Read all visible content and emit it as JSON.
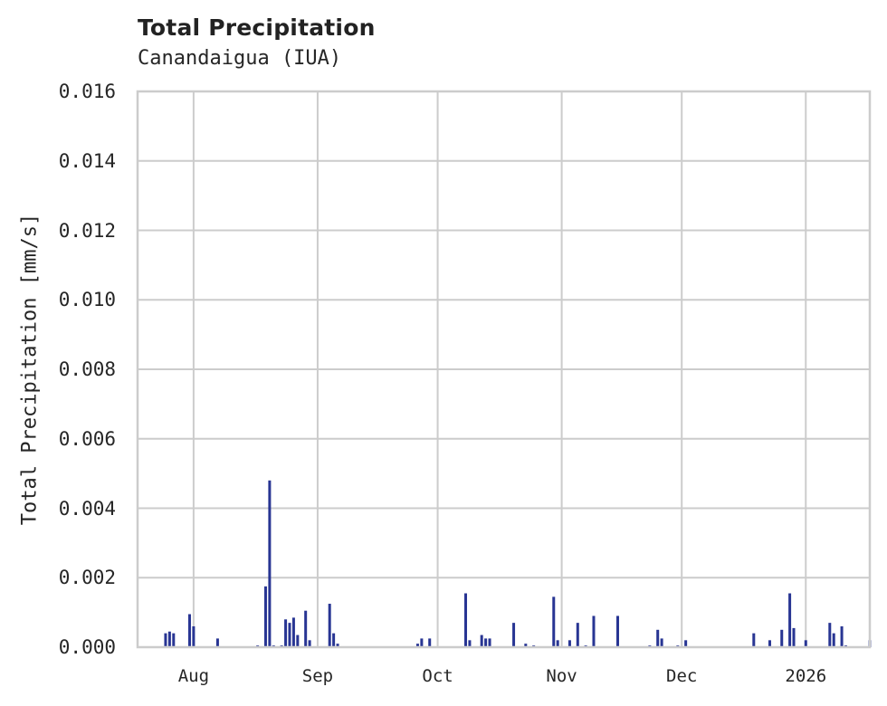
{
  "chart_data": {
    "type": "bar",
    "title": "Total Precipitation",
    "subtitle": "Canandaigua (IUA)",
    "xlabel": "",
    "ylabel": "Total Precipitation [mm/s]",
    "ylim": [
      0,
      0.016
    ],
    "yticks": [
      "0.000",
      "0.002",
      "0.004",
      "0.006",
      "0.008",
      "0.010",
      "0.012",
      "0.014",
      "0.016"
    ],
    "xticks": [
      "Aug",
      "Sep",
      "Oct",
      "Nov",
      "Dec",
      "2026"
    ],
    "xlim": [
      "2025-07-18",
      "2026-01-17"
    ],
    "grid": true,
    "legend": null,
    "series": [
      {
        "name": "Total Precipitation",
        "color": "#283593",
        "points": [
          {
            "x": "2025-07-25",
            "y": 0.0004
          },
          {
            "x": "2025-07-26",
            "y": 0.00045
          },
          {
            "x": "2025-07-27",
            "y": 0.0004
          },
          {
            "x": "2025-07-31",
            "y": 0.00095
          },
          {
            "x": "2025-08-01",
            "y": 0.0006
          },
          {
            "x": "2025-08-07",
            "y": 0.00025
          },
          {
            "x": "2025-08-17",
            "y": 5e-05
          },
          {
            "x": "2025-08-19",
            "y": 0.00175
          },
          {
            "x": "2025-08-20",
            "y": 0.0048
          },
          {
            "x": "2025-08-21",
            "y": 5e-05
          },
          {
            "x": "2025-08-23",
            "y": 5e-05
          },
          {
            "x": "2025-08-24",
            "y": 0.0008
          },
          {
            "x": "2025-08-25",
            "y": 0.0007
          },
          {
            "x": "2025-08-26",
            "y": 0.00085
          },
          {
            "x": "2025-08-27",
            "y": 0.00035
          },
          {
            "x": "2025-08-29",
            "y": 0.00105
          },
          {
            "x": "2025-08-30",
            "y": 0.0002
          },
          {
            "x": "2025-09-04",
            "y": 0.00125
          },
          {
            "x": "2025-09-05",
            "y": 0.0004
          },
          {
            "x": "2025-09-06",
            "y": 0.0001
          },
          {
            "x": "2025-09-26",
            "y": 0.0001
          },
          {
            "x": "2025-09-27",
            "y": 0.00025
          },
          {
            "x": "2025-09-29",
            "y": 0.00025
          },
          {
            "x": "2025-10-08",
            "y": 0.00155
          },
          {
            "x": "2025-10-09",
            "y": 0.0002
          },
          {
            "x": "2025-10-12",
            "y": 0.00035
          },
          {
            "x": "2025-10-13",
            "y": 0.00025
          },
          {
            "x": "2025-10-14",
            "y": 0.00025
          },
          {
            "x": "2025-10-20",
            "y": 0.0007
          },
          {
            "x": "2025-10-23",
            "y": 0.0001
          },
          {
            "x": "2025-10-25",
            "y": 5e-05
          },
          {
            "x": "2025-10-30",
            "y": 0.00145
          },
          {
            "x": "2025-10-31",
            "y": 0.0002
          },
          {
            "x": "2025-11-03",
            "y": 0.0002
          },
          {
            "x": "2025-11-05",
            "y": 0.0007
          },
          {
            "x": "2025-11-07",
            "y": 5e-05
          },
          {
            "x": "2025-11-09",
            "y": 0.0009
          },
          {
            "x": "2025-11-15",
            "y": 0.0009
          },
          {
            "x": "2025-11-23",
            "y": 5e-05
          },
          {
            "x": "2025-11-25",
            "y": 0.0005
          },
          {
            "x": "2025-11-26",
            "y": 0.00025
          },
          {
            "x": "2025-11-30",
            "y": 5e-05
          },
          {
            "x": "2025-12-02",
            "y": 0.0002
          },
          {
            "x": "2025-12-19",
            "y": 0.0004
          },
          {
            "x": "2025-12-23",
            "y": 0.0002
          },
          {
            "x": "2025-12-26",
            "y": 0.0005
          },
          {
            "x": "2025-12-28",
            "y": 0.00155
          },
          {
            "x": "2025-12-29",
            "y": 0.00055
          },
          {
            "x": "2026-01-01",
            "y": 0.0002
          },
          {
            "x": "2026-01-07",
            "y": 0.0007
          },
          {
            "x": "2026-01-08",
            "y": 0.0004
          },
          {
            "x": "2026-01-10",
            "y": 0.0006
          },
          {
            "x": "2026-01-11",
            "y": 5e-05
          },
          {
            "x": "2026-01-17",
            "y": 0.0002
          }
        ]
      }
    ]
  }
}
